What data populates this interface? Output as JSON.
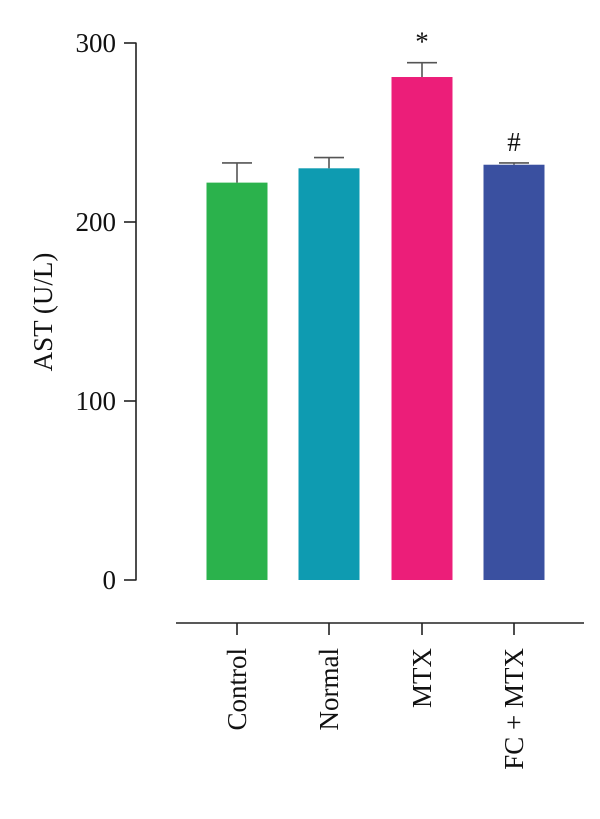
{
  "chart_data": {
    "type": "bar",
    "categories": [
      "Control",
      "Normal",
      "MTX",
      "FC + MTX"
    ],
    "values": [
      222,
      230,
      281,
      232
    ],
    "errors": [
      11,
      6,
      8,
      1
    ],
    "significance": [
      "",
      "",
      "*",
      "#"
    ],
    "colors": [
      "#2bb24c",
      "#0e9bb1",
      "#ec1e79",
      "#3a50a0"
    ],
    "ylabel": "AST (U/L)",
    "xlabel": "",
    "ylim": [
      0,
      300
    ],
    "yticks": [
      0,
      100,
      200,
      300
    ],
    "ytick_labels": [
      "0",
      "100",
      "200",
      "300"
    ],
    "grid": false,
    "legend": "none"
  }
}
